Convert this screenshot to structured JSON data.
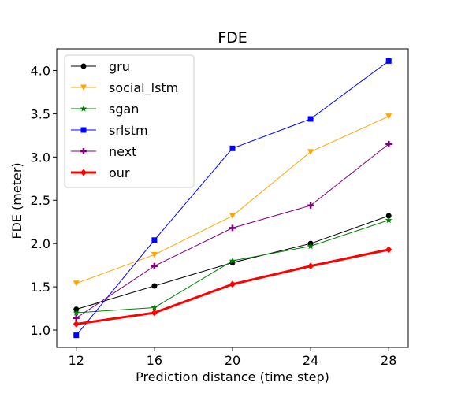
{
  "chart_data": {
    "type": "line",
    "title": "FDE",
    "xlabel": "Prediction distance (time step)",
    "ylabel": "FDE (meter)",
    "x": [
      12,
      16,
      20,
      24,
      28
    ],
    "xticks": [
      "12",
      "16",
      "20",
      "24",
      "28"
    ],
    "yticks": [
      "1.0",
      "1.5",
      "2.0",
      "2.5",
      "3.0",
      "3.5",
      "4.0"
    ],
    "xlim": [
      11,
      29
    ],
    "ylim": [
      0.8,
      4.25
    ],
    "grid": false,
    "legend_position": "top-left",
    "series": [
      {
        "name": "gru",
        "values": [
          1.24,
          1.51,
          1.78,
          2.0,
          2.32
        ],
        "color": "#000000",
        "marker": "circle"
      },
      {
        "name": "social_lstm",
        "values": [
          1.54,
          1.87,
          2.32,
          3.06,
          3.47
        ],
        "color": "#ffa500",
        "marker": "triangle-down"
      },
      {
        "name": "sgan",
        "values": [
          1.2,
          1.26,
          1.8,
          1.97,
          2.27
        ],
        "color": "#008000",
        "marker": "star"
      },
      {
        "name": "srlstm",
        "values": [
          0.94,
          2.04,
          3.1,
          3.44,
          4.11
        ],
        "color": "#0000ff",
        "marker": "square"
      },
      {
        "name": "next",
        "values": [
          1.14,
          1.74,
          2.18,
          2.44,
          3.15
        ],
        "color": "#800080",
        "marker": "plus"
      },
      {
        "name": "our",
        "values": [
          1.07,
          1.2,
          1.53,
          1.74,
          1.93
        ],
        "color": "#ff0000",
        "marker": "diamond",
        "bold": true
      }
    ]
  }
}
